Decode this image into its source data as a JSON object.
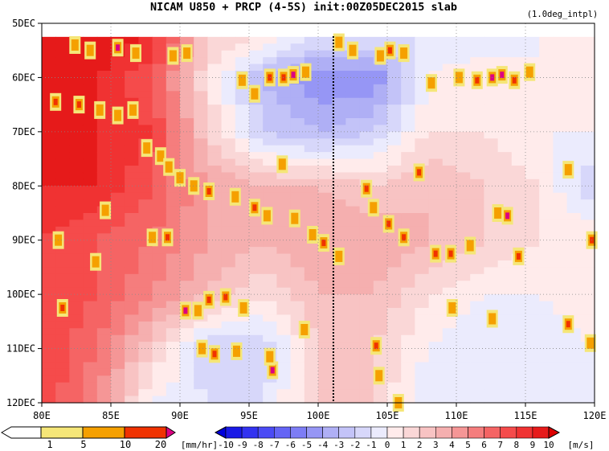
{
  "chart_data": {
    "type": "heatmap",
    "title": "NICAM   U850 + PRCP (4-5S) init:00Z05DEC2015 slab",
    "subtitle": "(1.0deg_intpl)",
    "x_ticks": [
      "80E",
      "85E",
      "90E",
      "95E",
      "100E",
      "105E",
      "110E",
      "115E",
      "120E"
    ],
    "y_ticks": [
      "5DEC",
      "6DEC",
      "7DEC",
      "8DEC",
      "9DEC",
      "10DEC",
      "11DEC",
      "12DEC"
    ],
    "x_range": [
      80,
      120
    ],
    "y_range": [
      "5DEC",
      "12DEC"
    ],
    "grid": true,
    "marker_line_lon": 101.1,
    "u850_colorbar": {
      "unit": "[m/s]",
      "labels": [
        "-10",
        "-9",
        "-8",
        "-7",
        "-6",
        "-5",
        "-4",
        "-3",
        "-2",
        "-1",
        "0",
        "1",
        "2",
        "3",
        "4",
        "5",
        "6",
        "7",
        "8",
        "9",
        "10"
      ],
      "colors": [
        "#1a1ae6",
        "#3232f0",
        "#4b4bf5",
        "#6464f5",
        "#7d7df5",
        "#9696f5",
        "#afaff5",
        "#c3c3f8",
        "#d7d7fa",
        "#ebebfd",
        "#ffebeb",
        "#fad7d7",
        "#f8c3c3",
        "#f5afaf",
        "#f59696",
        "#f57d7d",
        "#f56464",
        "#f54b4b",
        "#f03232",
        "#e61a1a"
      ],
      "under_color": "#0000dc",
      "over_color": "#dc0000"
    },
    "prcp_colorbar": {
      "unit": "[mm/hr]",
      "labels": [
        "1",
        "5",
        "10",
        "20"
      ],
      "colors": [
        "#ffffff",
        "#f5e678",
        "#f5a000",
        "#f03200",
        "#dc0082"
      ]
    },
    "u850_field": {
      "lon_nodes": [
        80,
        84,
        88,
        92,
        96,
        100,
        104,
        108,
        112,
        116,
        120
      ],
      "day_nodes": [
        0.25,
        1,
        2,
        3,
        4,
        5,
        6,
        7
      ],
      "values": [
        [
          10,
          10,
          9,
          2,
          1,
          -1,
          -1,
          -1,
          -1,
          0,
          0
        ],
        [
          9,
          9,
          7,
          1,
          -3,
          -5,
          -5,
          0,
          1,
          0,
          0
        ],
        [
          10,
          9,
          8,
          2,
          -2,
          -3,
          -2,
          1,
          1,
          0,
          0
        ],
        [
          9,
          9,
          7,
          4,
          3,
          3,
          2,
          3,
          2,
          1,
          -2
        ],
        [
          8,
          7,
          6,
          4,
          3,
          4,
          4,
          3,
          2,
          1,
          1
        ],
        [
          8,
          7,
          5,
          3,
          1,
          3,
          3,
          1,
          0,
          0,
          1
        ],
        [
          8,
          6,
          2,
          -2,
          -2,
          2,
          2,
          0,
          -1,
          -1,
          0
        ],
        [
          8,
          5,
          0,
          -1,
          -1,
          2,
          2,
          -1,
          -1,
          -1,
          0
        ]
      ]
    },
    "prcp_cells": [
      [
        85.5,
        0.45,
        20
      ],
      [
        86.8,
        0.55,
        5
      ],
      [
        83.5,
        0.5,
        5
      ],
      [
        82.4,
        0.4,
        5
      ],
      [
        89.5,
        0.6,
        5
      ],
      [
        90.5,
        0.55,
        5
      ],
      [
        94.5,
        1.05,
        5
      ],
      [
        96.5,
        1.0,
        10
      ],
      [
        97.5,
        1.0,
        10
      ],
      [
        98.2,
        0.95,
        20
      ],
      [
        99.1,
        0.9,
        5
      ],
      [
        95.4,
        1.3,
        5
      ],
      [
        101.5,
        0.35,
        5
      ],
      [
        102.5,
        0.5,
        5
      ],
      [
        104.5,
        0.6,
        5
      ],
      [
        105.2,
        0.5,
        10
      ],
      [
        106.2,
        0.55,
        5
      ],
      [
        108.2,
        1.1,
        5
      ],
      [
        110.2,
        1.0,
        5
      ],
      [
        111.5,
        1.05,
        10
      ],
      [
        112.6,
        1.0,
        20
      ],
      [
        113.3,
        0.95,
        20
      ],
      [
        114.2,
        1.05,
        10
      ],
      [
        115.3,
        0.9,
        5
      ],
      [
        81.0,
        1.45,
        10
      ],
      [
        82.7,
        1.5,
        10
      ],
      [
        84.2,
        1.6,
        5
      ],
      [
        85.5,
        1.7,
        5
      ],
      [
        86.6,
        1.6,
        5
      ],
      [
        87.6,
        2.3,
        5
      ],
      [
        88.6,
        2.45,
        5
      ],
      [
        89.2,
        2.65,
        5
      ],
      [
        90.0,
        2.85,
        5
      ],
      [
        91.0,
        3.0,
        5
      ],
      [
        92.1,
        3.1,
        10
      ],
      [
        94.0,
        3.2,
        5
      ],
      [
        95.4,
        3.4,
        10
      ],
      [
        96.3,
        3.55,
        5
      ],
      [
        97.4,
        2.6,
        5
      ],
      [
        98.3,
        3.6,
        5
      ],
      [
        99.6,
        3.9,
        5
      ],
      [
        100.4,
        4.05,
        10
      ],
      [
        101.5,
        4.3,
        5
      ],
      [
        103.5,
        3.05,
        10
      ],
      [
        104.0,
        3.4,
        5
      ],
      [
        105.1,
        3.7,
        10
      ],
      [
        106.2,
        3.95,
        10
      ],
      [
        107.3,
        2.75,
        10
      ],
      [
        108.5,
        4.25,
        10
      ],
      [
        109.6,
        4.25,
        10
      ],
      [
        111.0,
        4.1,
        5
      ],
      [
        113.0,
        3.5,
        5
      ],
      [
        113.7,
        3.55,
        20
      ],
      [
        114.5,
        4.3,
        10
      ],
      [
        118.1,
        2.7,
        5
      ],
      [
        119.8,
        4.0,
        10
      ],
      [
        81.2,
        4.0,
        5
      ],
      [
        84.6,
        3.45,
        5
      ],
      [
        83.9,
        4.4,
        5
      ],
      [
        88.0,
        3.95,
        5
      ],
      [
        89.1,
        3.95,
        10
      ],
      [
        81.5,
        5.25,
        10
      ],
      [
        90.4,
        5.3,
        20
      ],
      [
        91.3,
        5.3,
        5
      ],
      [
        92.1,
        5.1,
        10
      ],
      [
        93.3,
        5.05,
        10
      ],
      [
        94.6,
        5.25,
        5
      ],
      [
        91.6,
        6.0,
        5
      ],
      [
        92.5,
        6.1,
        10
      ],
      [
        94.1,
        6.05,
        5
      ],
      [
        96.7,
        6.4,
        20
      ],
      [
        96.5,
        6.15,
        5
      ],
      [
        99.0,
        5.65,
        5
      ],
      [
        104.2,
        5.95,
        10
      ],
      [
        104.4,
        6.5,
        5
      ],
      [
        109.7,
        5.25,
        5
      ],
      [
        112.6,
        5.45,
        5
      ],
      [
        118.1,
        5.55,
        10
      ],
      [
        119.7,
        5.9,
        5
      ],
      [
        105.8,
        7.0,
        5
      ]
    ]
  }
}
